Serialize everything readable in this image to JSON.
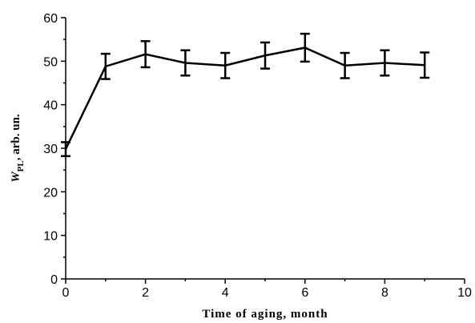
{
  "chart_data": {
    "type": "line",
    "xlabel": "Time of aging, month",
    "ylabel_main": "W",
    "ylabel_sub": "PL",
    "ylabel_rest": ", arb. un.",
    "x": [
      0,
      1,
      2,
      3,
      4,
      5,
      6,
      7,
      8,
      9
    ],
    "series": [
      {
        "name": "W_PL",
        "color": "#000000",
        "values": [
          29.8,
          48.8,
          51.6,
          49.6,
          49,
          51.3,
          53.1,
          49,
          49.6,
          49.1
        ],
        "errors": [
          1.6,
          2.9,
          3,
          2.9,
          2.9,
          3,
          3.2,
          2.9,
          2.9,
          2.9
        ]
      }
    ],
    "xlim": [
      0,
      10
    ],
    "xticks": [
      0,
      2,
      4,
      6,
      8,
      10
    ],
    "xminorticks": [
      1,
      3,
      5,
      7,
      9
    ],
    "ylim": [
      0,
      60
    ],
    "yticks": [
      0,
      10,
      20,
      30,
      40,
      50,
      60
    ],
    "yminorticks": [
      5,
      15,
      25,
      35,
      45,
      55
    ]
  }
}
